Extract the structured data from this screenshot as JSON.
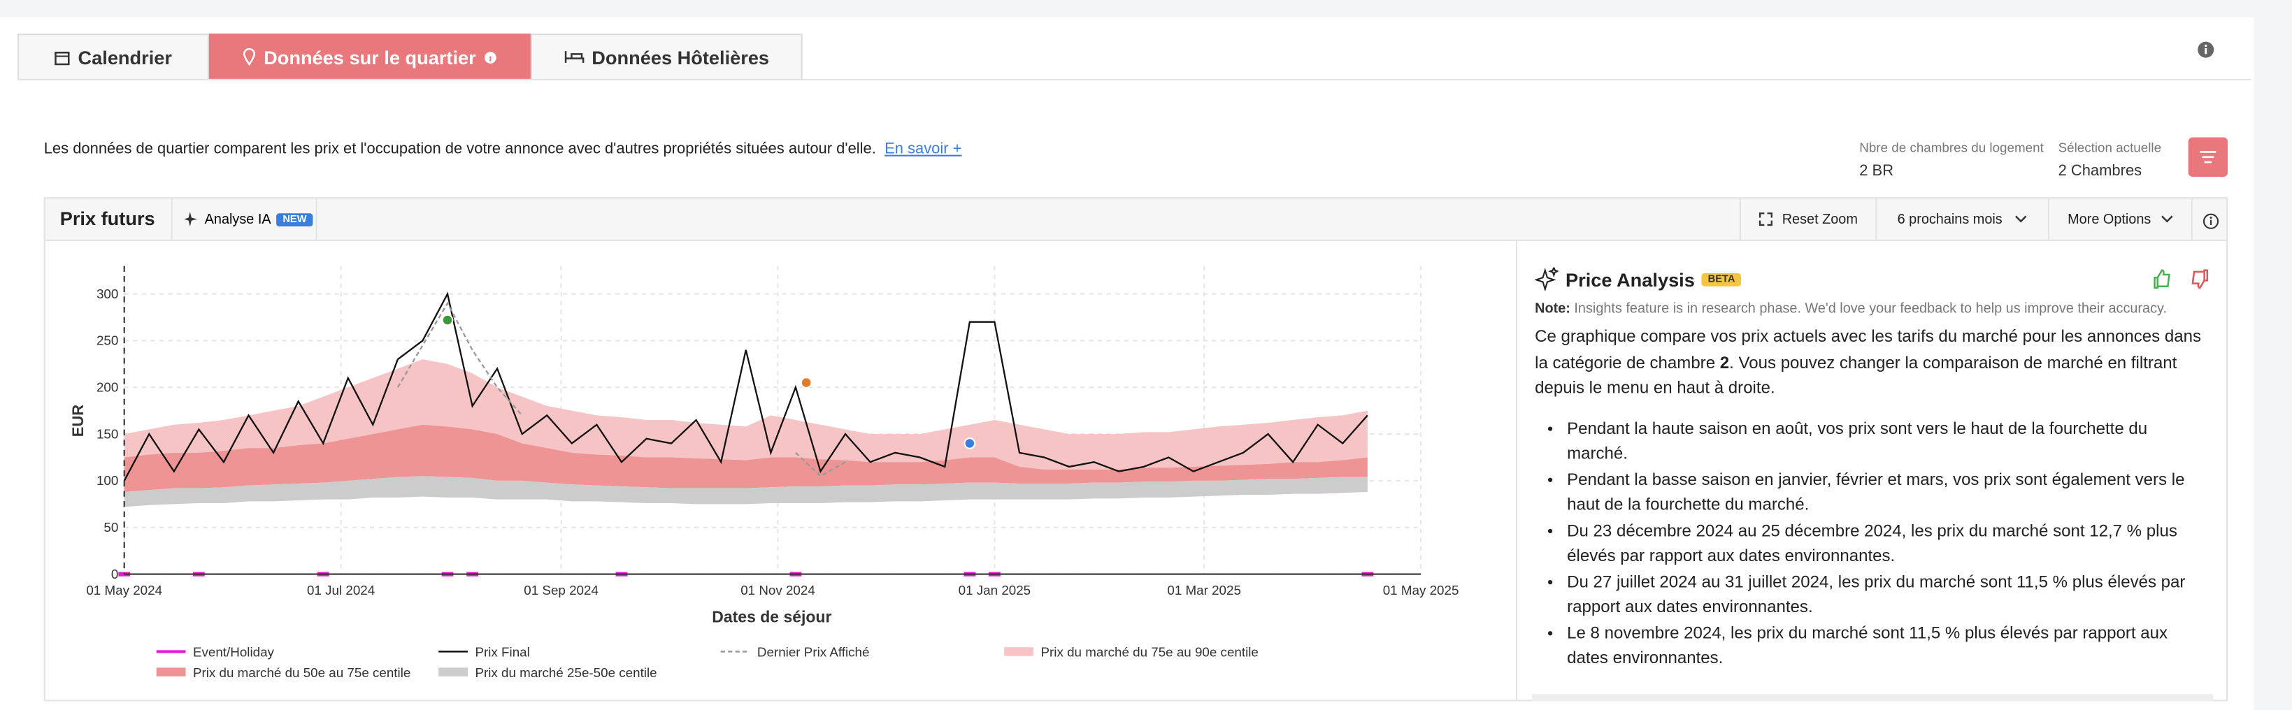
{
  "tabs": [
    "Calendrier",
    "Données sur le quartier",
    "Données Hôtelières"
  ],
  "intro": {
    "text": "Les données de quartier comparent les prix et l'occupation de votre annonce avec d'autres propriétés situées autour d'elle.",
    "link": "En savoir +"
  },
  "selectors": [
    {
      "label": "Nbre de chambres du logement",
      "value": "2 BR"
    },
    {
      "label": "Sélection actuelle",
      "value": "2 Chambres"
    }
  ],
  "toolbar": {
    "ai": "Analyse IA",
    "badge": "NEW",
    "buttons": [
      "Reset Zoom",
      "6 prochains mois",
      "More Options"
    ]
  },
  "analysis": {
    "title": "Price Analysis",
    "badge": "BETA",
    "note_label": "Note:",
    "note": "Insights feature is in research phase. We'd love your feedback to help us improve their accuracy.",
    "intro": [
      "Ce graphique compare vos prix actuels avec les tarifs du marché pour les annonces dans la catégorie de chambre",
      "2",
      ". Vous pouvez changer la comparaison de marché en filtrant depuis le menu en haut à droite."
    ],
    "bullets": [
      "Pendant la haute saison en août, vos prix sont vers le haut de la fourchette du marché.",
      "Pendant la basse saison en janvier, février et mars, vos prix sont également vers le haut de la fourchette du marché.",
      "Du 23 décembre 2024 au 25 décembre 2024, les prix du marché sont 12,7 % plus élevés par rapport aux dates environnantes.",
      "Du 27 juillet 2024 au 31 juillet 2024, les prix du marché sont 11,5 % plus élevés par rapport aux dates environnantes.",
      "Le 8 novembre 2024, les prix du marché sont 11,5 % plus élevés par rapport aux dates environnantes."
    ]
  },
  "chart_data": {
    "type": "line",
    "title": "Prix futurs",
    "x_label": "Dates de séjour",
    "y_label": "EUR",
    "x": [
      "2024-05-01",
      "2024-05-08",
      "2024-05-15",
      "2024-05-22",
      "2024-05-29",
      "2024-06-05",
      "2024-06-12",
      "2024-06-19",
      "2024-06-26",
      "2024-07-03",
      "2024-07-10",
      "2024-07-17",
      "2024-07-24",
      "2024-07-31",
      "2024-08-07",
      "2024-08-14",
      "2024-08-21",
      "2024-08-28",
      "2024-09-04",
      "2024-09-11",
      "2024-09-18",
      "2024-09-25",
      "2024-10-02",
      "2024-10-09",
      "2024-10-16",
      "2024-10-23",
      "2024-10-30",
      "2024-11-06",
      "2024-11-13",
      "2024-11-20",
      "2024-11-27",
      "2024-12-04",
      "2024-12-11",
      "2024-12-18",
      "2024-12-25",
      "2025-01-01",
      "2025-01-08",
      "2025-01-15",
      "2025-01-22",
      "2025-01-29",
      "2025-02-05",
      "2025-02-12",
      "2025-02-19",
      "2025-02-26",
      "2025-03-05",
      "2025-03-12",
      "2025-03-19",
      "2025-03-26",
      "2025-04-02",
      "2025-04-09",
      "2025-04-16"
    ],
    "series": [
      {
        "name": "Event/Holiday",
        "color": "#e020d0",
        "style": "event",
        "values": [
          0,
          null,
          null,
          0,
          null,
          null,
          null,
          null,
          0,
          null,
          null,
          null,
          null,
          0,
          0,
          null,
          null,
          null,
          null,
          null,
          0,
          null,
          null,
          null,
          null,
          null,
          null,
          0,
          null,
          null,
          null,
          null,
          null,
          null,
          0,
          0,
          null,
          null,
          null,
          null,
          null,
          null,
          null,
          null,
          null,
          null,
          null,
          null,
          null,
          null,
          0
        ]
      },
      {
        "name": "Prix Final",
        "color": "#111111",
        "style": "line",
        "values": [
          100,
          150,
          110,
          155,
          120,
          170,
          130,
          185,
          140,
          210,
          160,
          230,
          250,
          300,
          180,
          220,
          150,
          170,
          140,
          160,
          120,
          145,
          140,
          165,
          120,
          240,
          130,
          200,
          110,
          150,
          120,
          130,
          125,
          115,
          270,
          270,
          130,
          125,
          115,
          120,
          110,
          115,
          125,
          110,
          120,
          130,
          150,
          120,
          160,
          140,
          170
        ]
      },
      {
        "name": "Dernier Prix Affiché",
        "color": "#999999",
        "style": "dashed",
        "values": [
          null,
          null,
          null,
          null,
          null,
          null,
          null,
          null,
          null,
          null,
          null,
          200,
          245,
          290,
          240,
          200,
          170,
          null,
          null,
          null,
          null,
          null,
          null,
          null,
          null,
          null,
          null,
          130,
          105,
          120,
          null,
          null,
          null,
          null,
          null,
          null,
          null,
          null,
          null,
          null,
          null,
          null,
          null,
          null,
          null,
          null,
          null,
          null,
          null,
          null,
          null
        ]
      },
      {
        "name": "Prix du marché du 75e au 90e centile",
        "color": "#f6c4c4",
        "style": "band",
        "low": [
          125,
          128,
          130,
          130,
          132,
          135,
          135,
          138,
          140,
          145,
          150,
          155,
          160,
          158,
          155,
          150,
          140,
          135,
          130,
          128,
          127,
          125,
          125,
          124,
          123,
          122,
          125,
          125,
          123,
          122,
          120,
          120,
          120,
          122,
          125,
          125,
          115,
          112,
          112,
          112,
          112,
          114,
          114,
          115,
          116,
          117,
          118,
          120,
          120,
          122,
          125
        ],
        "high": [
          150,
          155,
          160,
          162,
          165,
          170,
          175,
          180,
          190,
          200,
          210,
          220,
          230,
          225,
          215,
          200,
          190,
          180,
          175,
          170,
          168,
          165,
          165,
          162,
          160,
          158,
          170,
          165,
          160,
          155,
          150,
          150,
          150,
          155,
          160,
          165,
          160,
          155,
          150,
          150,
          150,
          152,
          152,
          155,
          158,
          160,
          162,
          165,
          168,
          170,
          175
        ]
      },
      {
        "name": "Prix du marché du 50e au 75e centile",
        "color": "#ee9494",
        "style": "band",
        "low": [
          88,
          90,
          92,
          92,
          93,
          95,
          96,
          97,
          98,
          100,
          102,
          104,
          105,
          104,
          103,
          100,
          100,
          98,
          96,
          95,
          94,
          93,
          92,
          92,
          92,
          92,
          93,
          94,
          94,
          95,
          95,
          96,
          96,
          97,
          98,
          98,
          97,
          97,
          97,
          98,
          98,
          99,
          99,
          100,
          100,
          101,
          102,
          102,
          103,
          104,
          104
        ],
        "high": [
          125,
          128,
          130,
          130,
          132,
          135,
          135,
          138,
          140,
          145,
          150,
          155,
          160,
          158,
          155,
          150,
          140,
          135,
          130,
          128,
          127,
          125,
          125,
          124,
          123,
          122,
          125,
          125,
          123,
          122,
          120,
          120,
          120,
          122,
          125,
          125,
          115,
          112,
          112,
          112,
          112,
          114,
          114,
          115,
          116,
          117,
          118,
          120,
          120,
          122,
          125
        ]
      },
      {
        "name": "Prix du marché 25e-50e centile",
        "color": "#cccccc",
        "style": "band",
        "low": [
          72,
          74,
          75,
          76,
          76,
          78,
          78,
          79,
          80,
          80,
          82,
          82,
          83,
          82,
          82,
          80,
          80,
          80,
          78,
          78,
          77,
          76,
          76,
          75,
          75,
          75,
          76,
          76,
          76,
          77,
          77,
          78,
          78,
          79,
          80,
          80,
          80,
          80,
          80,
          81,
          81,
          82,
          82,
          83,
          84,
          85,
          85,
          86,
          86,
          87,
          88
        ],
        "high": [
          88,
          90,
          92,
          92,
          93,
          95,
          96,
          97,
          98,
          100,
          102,
          104,
          105,
          104,
          103,
          100,
          100,
          98,
          96,
          95,
          94,
          93,
          92,
          92,
          92,
          92,
          93,
          94,
          94,
          95,
          95,
          96,
          96,
          97,
          98,
          98,
          97,
          97,
          97,
          98,
          98,
          99,
          99,
          100,
          100,
          101,
          102,
          102,
          103,
          104,
          104
        ]
      }
    ],
    "markers": [
      {
        "x": "2024-07-31",
        "y": 272,
        "color": "#3a9a3a"
      },
      {
        "x": "2024-11-09",
        "y": 205,
        "color": "#e07b2a"
      },
      {
        "x": "2024-12-25",
        "y": 140,
        "color": "#3b7ddd"
      }
    ],
    "xlim": [
      "2024-05-01",
      "2025-05-01"
    ],
    "xticks": [
      {
        "value": "2024-05-01",
        "label": "01 May 2024"
      },
      {
        "value": "2024-07-01",
        "label": "01 Jul 2024"
      },
      {
        "value": "2024-09-01",
        "label": "01 Sep 2024"
      },
      {
        "value": "2024-11-01",
        "label": "01 Nov 2024"
      },
      {
        "value": "2025-01-01",
        "label": "01 Jan 2025"
      },
      {
        "value": "2025-03-01",
        "label": "01 Mar 2025"
      },
      {
        "value": "2025-05-01",
        "label": "01 May 2025"
      }
    ],
    "ylim": [
      0,
      330
    ],
    "yticks": [
      0,
      50,
      100,
      150,
      200,
      250,
      300
    ],
    "grid": true
  }
}
